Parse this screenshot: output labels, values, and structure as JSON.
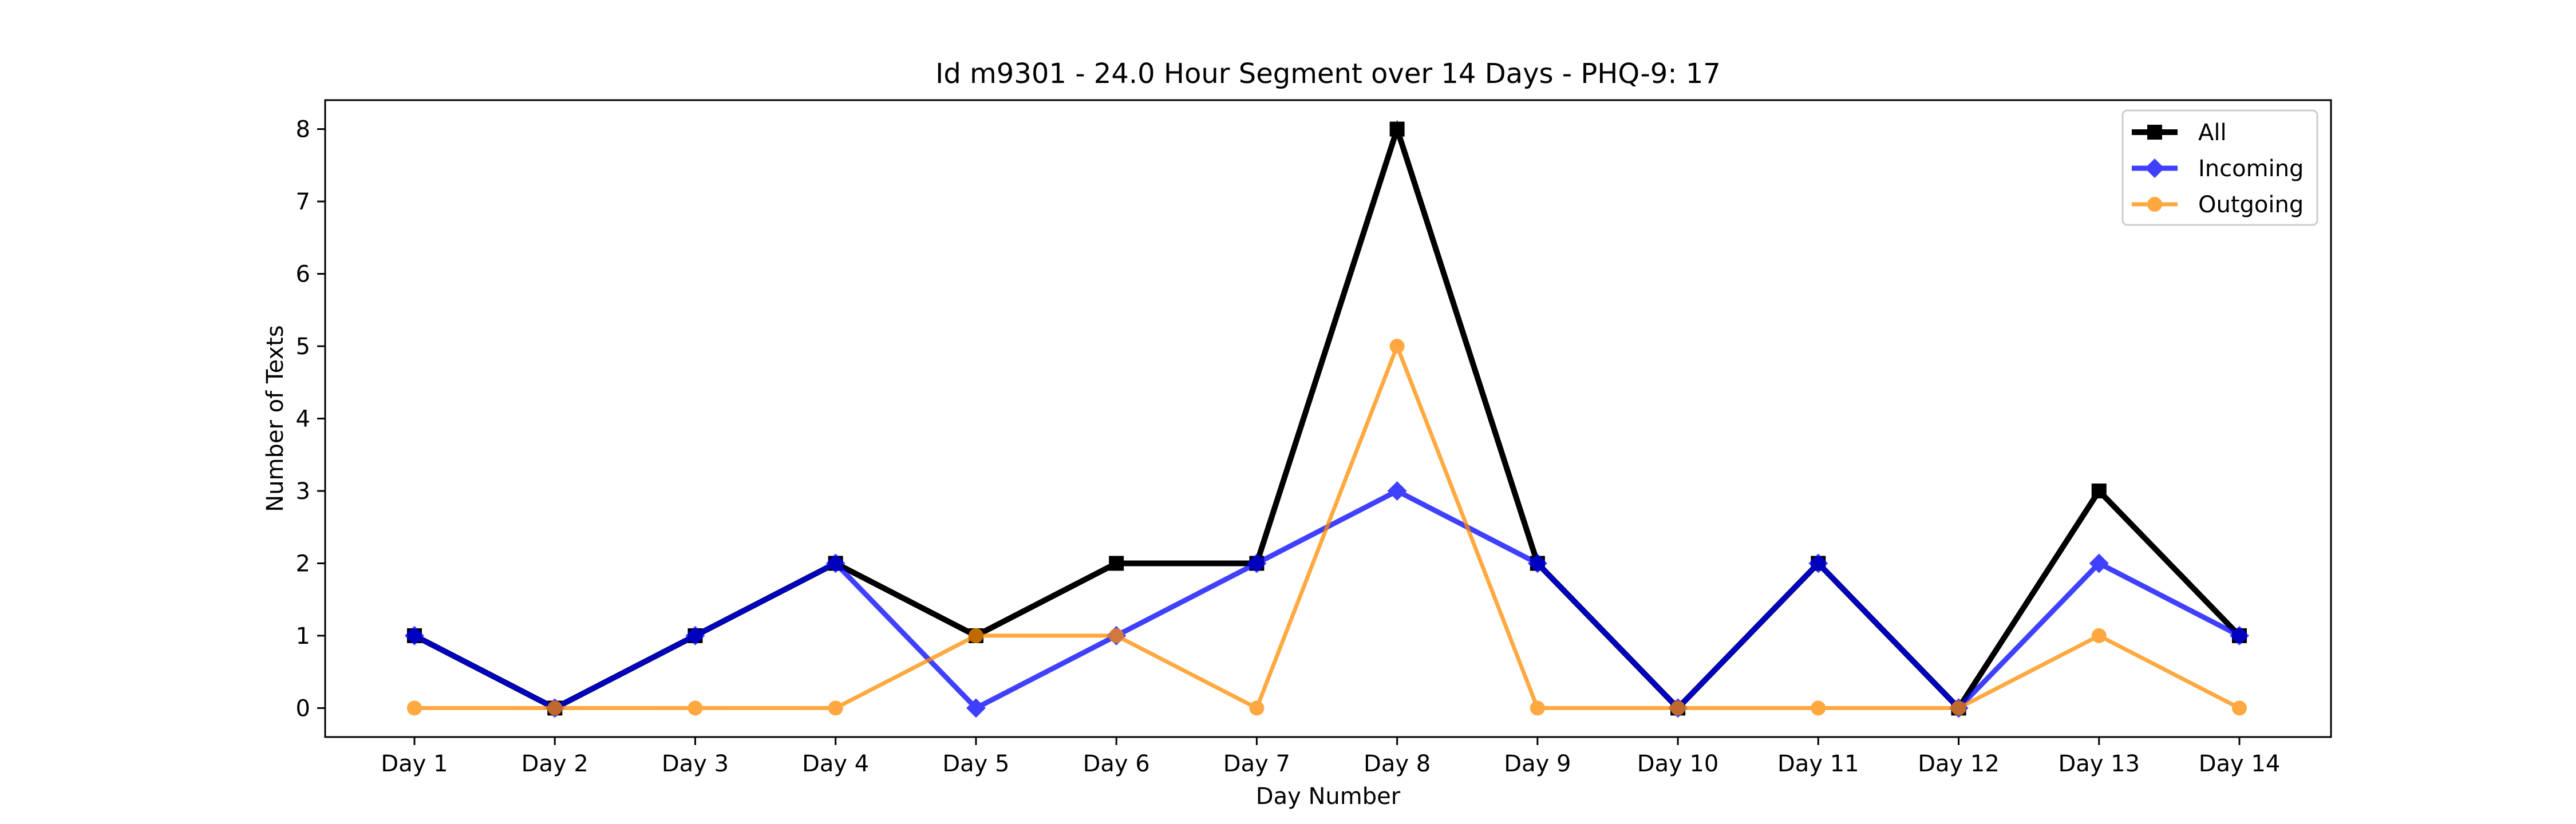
{
  "chart_data": {
    "type": "line",
    "title": "Id m9301 - 24.0 Hour Segment over 14 Days - PHQ-9: 17",
    "xlabel": "Day Number",
    "ylabel": "Number of Texts",
    "categories": [
      "Day 1",
      "Day 2",
      "Day 3",
      "Day 4",
      "Day 5",
      "Day 6",
      "Day 7",
      "Day 8",
      "Day 9",
      "Day 10",
      "Day 11",
      "Day 12",
      "Day 13",
      "Day 14"
    ],
    "ylim": [
      -0.4,
      8.4
    ],
    "yticks": [
      0,
      1,
      2,
      3,
      4,
      5,
      6,
      7,
      8
    ],
    "grid": false,
    "legend_position": "top-right",
    "series": [
      {
        "name": "All",
        "color": "#000000",
        "marker": "square",
        "values": [
          1,
          0,
          1,
          2,
          1,
          2,
          2,
          8,
          2,
          0,
          2,
          0,
          3,
          1
        ]
      },
      {
        "name": "Incoming",
        "color": "#0000ff",
        "marker": "diamond",
        "values": [
          1,
          0,
          1,
          2,
          0,
          1,
          2,
          3,
          2,
          0,
          2,
          0,
          2,
          1
        ]
      },
      {
        "name": "Outgoing",
        "color": "#ff8c00",
        "marker": "circle",
        "values": [
          0,
          0,
          0,
          0,
          1,
          1,
          0,
          5,
          0,
          0,
          0,
          0,
          1,
          0
        ]
      }
    ]
  }
}
